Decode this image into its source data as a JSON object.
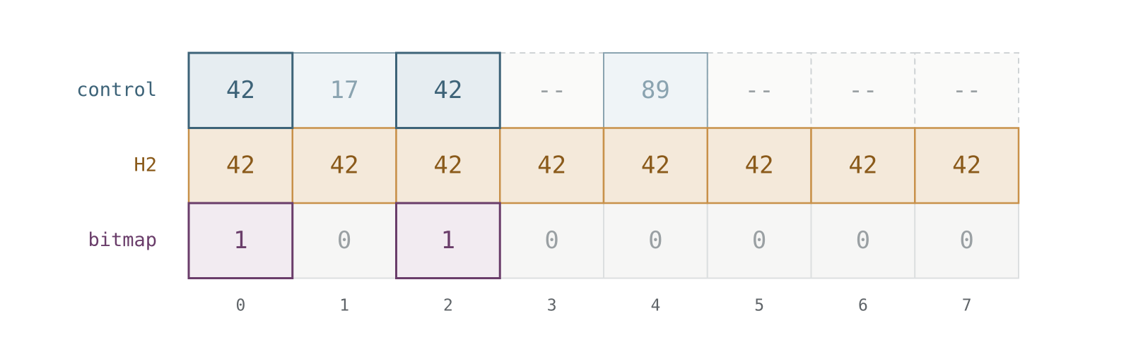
{
  "rows": [
    {
      "label": "control",
      "cells": [
        "42",
        "17",
        "42",
        "--",
        "89",
        "--",
        "--",
        "--"
      ]
    },
    {
      "label": "H2",
      "cells": [
        "42",
        "42",
        "42",
        "42",
        "42",
        "42",
        "42",
        "42"
      ]
    },
    {
      "label": "bitmap",
      "cells": [
        "1",
        "0",
        "1",
        "0",
        "0",
        "0",
        "0",
        "0"
      ]
    }
  ],
  "columns": [
    "0",
    "1",
    "2",
    "3",
    "4",
    "5",
    "6",
    "7"
  ]
}
